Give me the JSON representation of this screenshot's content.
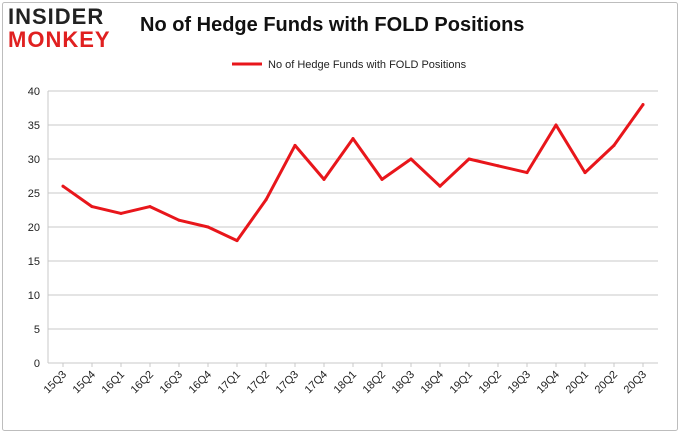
{
  "logo": {
    "line1": "INSIDER",
    "line2": "MONKEY"
  },
  "colors": {
    "series": "#e8161b",
    "grid": "#c8c8c8",
    "frame": "#bdbdbd",
    "logo_red": "#e02020"
  },
  "chart_data": {
    "type": "line",
    "title": "No of Hedge Funds with FOLD Positions",
    "xlabel": "",
    "ylabel": "",
    "ylim": [
      0,
      40
    ],
    "yticks": [
      0,
      5,
      10,
      15,
      20,
      25,
      30,
      35,
      40
    ],
    "grid": true,
    "legend_position": "top-center",
    "categories": [
      "15Q3",
      "15Q4",
      "16Q1",
      "16Q2",
      "16Q3",
      "16Q4",
      "17Q1",
      "17Q2",
      "17Q3",
      "17Q4",
      "18Q1",
      "18Q2",
      "18Q3",
      "18Q4",
      "19Q1",
      "19Q2",
      "19Q3",
      "19Q4",
      "20Q1",
      "20Q2",
      "20Q3"
    ],
    "series": [
      {
        "name": "No of Hedge Funds with FOLD Positions",
        "values": [
          26,
          23,
          22,
          23,
          21,
          20,
          18,
          24,
          32,
          27,
          33,
          27,
          30,
          26,
          30,
          29,
          28,
          35,
          28,
          32,
          38
        ]
      }
    ]
  }
}
